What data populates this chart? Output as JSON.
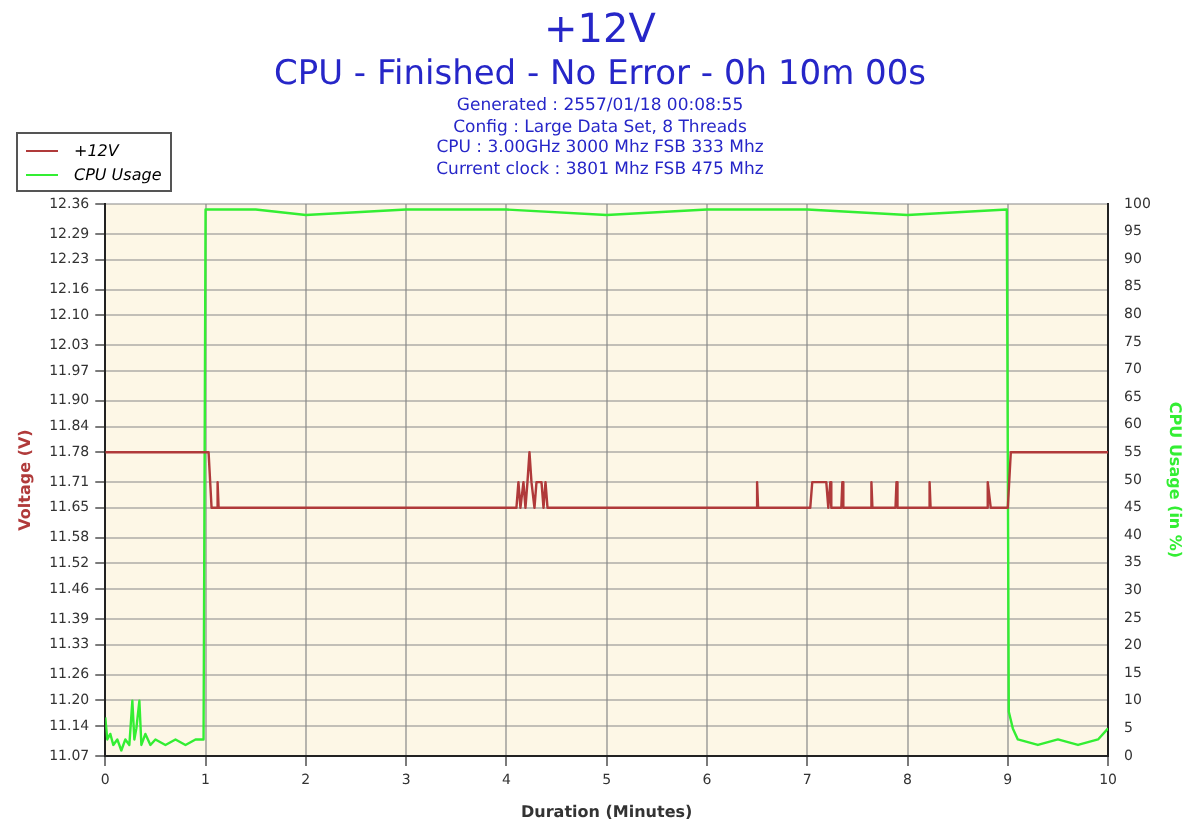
{
  "chart_data": {
    "type": "line",
    "title": "+12V",
    "subtitle": "CPU - Finished - No Error - 0h 10m 00s",
    "annotations": [
      "Generated : 2557/01/18 00:08:55",
      "Config : Large Data Set, 8 Threads",
      "CPU : 3.00GHz 3000 Mhz FSB 333 Mhz",
      "Current clock : 3801 Mhz FSB 475 Mhz"
    ],
    "xlabel": "Duration (Minutes)",
    "ylabel": "Voltage (V)",
    "y2label": "CPU Usage (in %)",
    "xlim": [
      0,
      10
    ],
    "xticks": [
      0,
      1,
      2,
      3,
      4,
      5,
      6,
      7,
      8,
      9,
      10
    ],
    "ylim": [
      11.07,
      12.36
    ],
    "yticks": [
      11.07,
      11.14,
      {
        "value": 11.2,
        "label": "11.20"
      },
      11.26,
      11.33,
      11.39,
      11.46,
      11.52,
      11.58,
      11.65,
      11.71,
      11.78,
      11.84,
      {
        "value": 11.9,
        "label": "11.90"
      },
      11.97,
      12.03,
      {
        "value": 12.1,
        "label": "12.10"
      },
      12.16,
      12.23,
      12.29,
      12.36
    ],
    "y2lim": [
      0,
      100
    ],
    "y2ticks": [
      0,
      5,
      10,
      15,
      20,
      25,
      30,
      35,
      40,
      45,
      50,
      55,
      60,
      65,
      70,
      75,
      80,
      85,
      90,
      95,
      100
    ],
    "grid": true,
    "legend": "top left",
    "marker": "none",
    "series": [
      {
        "name": "+12V",
        "color": "#b03a3a",
        "x": [
          0,
          1.03,
          1.06,
          1.11,
          1.12,
          1.13,
          4.1,
          4.12,
          4.14,
          4.17,
          4.19,
          4.21,
          4.23,
          4.25,
          4.28,
          4.3,
          4.35,
          4.37,
          4.39,
          4.41,
          6.49,
          6.5,
          6.51,
          7.03,
          7.05,
          7.19,
          7.21,
          7.23,
          7.24,
          7.34,
          7.35,
          7.36,
          7.63,
          7.64,
          7.65,
          7.88,
          7.89,
          7.9,
          8.21,
          8.22,
          8.23,
          8.79,
          8.8,
          8.83,
          9.0,
          9.03,
          10
        ],
        "values": [
          11.78,
          11.78,
          11.65,
          11.65,
          11.71,
          11.65,
          11.65,
          11.71,
          11.65,
          11.71,
          11.65,
          11.71,
          11.78,
          11.71,
          11.65,
          11.71,
          11.71,
          11.65,
          11.71,
          11.65,
          11.65,
          11.71,
          11.65,
          11.65,
          11.71,
          11.71,
          11.65,
          11.71,
          11.65,
          11.65,
          11.71,
          11.65,
          11.65,
          11.71,
          11.65,
          11.65,
          11.71,
          11.65,
          11.65,
          11.71,
          11.65,
          11.65,
          11.71,
          11.65,
          11.65,
          11.78,
          11.78
        ]
      },
      {
        "name": "CPU Usage",
        "color": "#33ee33",
        "axis": "y2",
        "x": [
          0,
          0.02,
          0.05,
          0.08,
          0.12,
          0.16,
          0.2,
          0.24,
          0.27,
          0.29,
          0.31,
          0.34,
          0.36,
          0.4,
          0.45,
          0.5,
          0.6,
          0.7,
          0.8,
          0.9,
          0.98,
          1.0,
          1.5,
          2,
          3,
          4,
          5,
          6,
          7,
          8,
          8.99,
          9.01,
          9.05,
          9.1,
          9.3,
          9.5,
          9.7,
          9.9,
          10
        ],
        "values": [
          7,
          3,
          4,
          2,
          3,
          1,
          3,
          2,
          10,
          3,
          5,
          10,
          2,
          4,
          2,
          3,
          2,
          3,
          2,
          3,
          3,
          99,
          99,
          98,
          99,
          99,
          98,
          99,
          99,
          98,
          99,
          8,
          5,
          3,
          2,
          3,
          2,
          3,
          5
        ]
      }
    ]
  }
}
